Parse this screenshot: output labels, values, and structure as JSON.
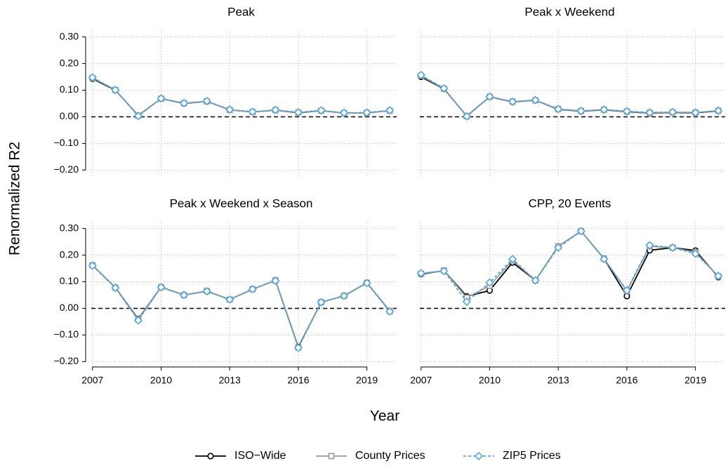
{
  "chart_data": [
    {
      "type": "line",
      "title": "Peak",
      "x": [
        2007,
        2008,
        2009,
        2010,
        2011,
        2012,
        2013,
        2014,
        2015,
        2016,
        2017,
        2018,
        2019,
        2020
      ],
      "series": [
        {
          "name": "ISO−Wide",
          "color": "#000000",
          "marker": "circle",
          "linestyle": "solid",
          "values": [
            0.143,
            0.1,
            0.005,
            0.068,
            0.05,
            0.058,
            0.026,
            0.018,
            0.025,
            0.015,
            0.023,
            0.014,
            0.015,
            0.023
          ]
        },
        {
          "name": "County Prices",
          "color": "#999999",
          "marker": "square",
          "linestyle": "solid",
          "values": [
            0.146,
            0.101,
            0.004,
            0.068,
            0.051,
            0.058,
            0.026,
            0.018,
            0.025,
            0.016,
            0.023,
            0.014,
            0.015,
            0.023
          ]
        },
        {
          "name": "ZIP5 Prices",
          "color": "#56a8dc",
          "marker": "diamond",
          "linestyle": "dashed",
          "values": [
            0.148,
            0.101,
            0.003,
            0.069,
            0.051,
            0.059,
            0.027,
            0.019,
            0.026,
            0.017,
            0.024,
            0.015,
            0.016,
            0.024
          ]
        }
      ],
      "xlim": [
        2006.7,
        2020.3
      ],
      "xticks": [
        2007,
        2010,
        2013,
        2016,
        2019
      ],
      "ylim": [
        -0.22,
        0.32
      ],
      "yticks": [
        {
          "value": -0.2,
          "label": "−0.20"
        },
        {
          "value": -0.1,
          "label": "−0.10"
        },
        {
          "value": 0,
          "label": "0.00"
        },
        {
          "value": 0.1,
          "label": "0.10"
        },
        {
          "value": 0.2,
          "label": "0.20"
        },
        {
          "value": 0.3,
          "label": "0.30"
        }
      ],
      "hline": 0,
      "grid": true
    },
    {
      "type": "line",
      "title": "Peak x Weekend",
      "x": [
        2007,
        2008,
        2009,
        2010,
        2011,
        2012,
        2013,
        2014,
        2015,
        2016,
        2017,
        2018,
        2019,
        2020
      ],
      "series": [
        {
          "name": "ISO−Wide",
          "color": "#000000",
          "marker": "circle",
          "linestyle": "solid",
          "values": [
            0.15,
            0.105,
            0.003,
            0.075,
            0.056,
            0.062,
            0.028,
            0.021,
            0.026,
            0.019,
            0.014,
            0.016,
            0.015,
            0.022
          ]
        },
        {
          "name": "County Prices",
          "color": "#999999",
          "marker": "square",
          "linestyle": "solid",
          "values": [
            0.154,
            0.106,
            0.002,
            0.075,
            0.057,
            0.062,
            0.029,
            0.022,
            0.027,
            0.02,
            0.015,
            0.017,
            0.016,
            0.023
          ]
        },
        {
          "name": "ZIP5 Prices",
          "color": "#56a8dc",
          "marker": "diamond",
          "linestyle": "dashed",
          "values": [
            0.157,
            0.107,
            0.002,
            0.076,
            0.057,
            0.063,
            0.029,
            0.022,
            0.027,
            0.021,
            0.016,
            0.018,
            0.016,
            0.023
          ]
        }
      ],
      "xlim": [
        2006.7,
        2020.3
      ],
      "xticks": [
        2007,
        2010,
        2013,
        2016,
        2019
      ],
      "ylim": [
        -0.22,
        0.32
      ],
      "yticks": [
        {
          "value": -0.2,
          "label": "−0.20"
        },
        {
          "value": -0.1,
          "label": "−0.10"
        },
        {
          "value": 0,
          "label": "0.00"
        },
        {
          "value": 0.1,
          "label": "0.10"
        },
        {
          "value": 0.2,
          "label": "0.20"
        },
        {
          "value": 0.3,
          "label": "0.30"
        }
      ],
      "hline": 0,
      "grid": true
    },
    {
      "type": "line",
      "title": "Peak x Weekend x Season",
      "x": [
        2007,
        2008,
        2009,
        2010,
        2011,
        2012,
        2013,
        2014,
        2015,
        2016,
        2017,
        2018,
        2019,
        2020
      ],
      "series": [
        {
          "name": "ISO−Wide",
          "color": "#000000",
          "marker": "circle",
          "linestyle": "solid",
          "values": [
            0.162,
            0.078,
            -0.04,
            0.08,
            0.05,
            0.065,
            0.033,
            0.072,
            0.105,
            -0.145,
            0.023,
            0.047,
            0.096,
            -0.01
          ]
        },
        {
          "name": "County Prices",
          "color": "#999999",
          "marker": "square",
          "linestyle": "solid",
          "values": [
            0.162,
            0.078,
            -0.042,
            0.08,
            0.05,
            0.065,
            0.033,
            0.072,
            0.105,
            -0.147,
            0.023,
            0.047,
            0.096,
            -0.011
          ]
        },
        {
          "name": "ZIP5 Prices",
          "color": "#56a8dc",
          "marker": "diamond",
          "linestyle": "dashed",
          "values": [
            0.16,
            0.077,
            -0.045,
            0.079,
            0.05,
            0.064,
            0.033,
            0.072,
            0.104,
            -0.148,
            0.023,
            0.047,
            0.095,
            -0.012
          ]
        }
      ],
      "xlim": [
        2006.7,
        2020.3
      ],
      "xticks": [
        2007,
        2010,
        2013,
        2016,
        2019
      ],
      "ylim": [
        -0.22,
        0.32
      ],
      "yticks": [
        {
          "value": -0.2,
          "label": "−0.20"
        },
        {
          "value": -0.1,
          "label": "−0.10"
        },
        {
          "value": 0,
          "label": "0.00"
        },
        {
          "value": 0.1,
          "label": "0.10"
        },
        {
          "value": 0.2,
          "label": "0.20"
        },
        {
          "value": 0.3,
          "label": "0.30"
        }
      ],
      "hline": 0,
      "grid": true
    },
    {
      "type": "line",
      "title": "CPP, 20 Events",
      "x": [
        2007,
        2008,
        2009,
        2010,
        2011,
        2012,
        2013,
        2014,
        2015,
        2016,
        2017,
        2018,
        2019,
        2020
      ],
      "series": [
        {
          "name": "ISO−Wide",
          "color": "#000000",
          "marker": "circle",
          "linestyle": "solid",
          "values": [
            0.128,
            0.142,
            0.045,
            0.067,
            0.172,
            0.105,
            0.233,
            0.29,
            0.187,
            0.046,
            0.218,
            0.228,
            0.217,
            0.117
          ]
        },
        {
          "name": "County Prices",
          "color": "#999999",
          "marker": "square",
          "linestyle": "solid",
          "values": [
            0.13,
            0.142,
            0.04,
            0.085,
            0.18,
            0.105,
            0.233,
            0.29,
            0.187,
            0.065,
            0.233,
            0.228,
            0.21,
            0.12
          ]
        },
        {
          "name": "ZIP5 Prices",
          "color": "#56a8dc",
          "marker": "diamond",
          "linestyle": "dashed",
          "values": [
            0.132,
            0.14,
            0.025,
            0.097,
            0.185,
            0.105,
            0.228,
            0.29,
            0.185,
            0.068,
            0.237,
            0.228,
            0.205,
            0.122
          ]
        }
      ],
      "xlim": [
        2006.7,
        2020.3
      ],
      "xticks": [
        2007,
        2010,
        2013,
        2016,
        2019
      ],
      "ylim": [
        -0.22,
        0.32
      ],
      "yticks": [
        {
          "value": -0.2,
          "label": "−0.20"
        },
        {
          "value": -0.1,
          "label": "−0.10"
        },
        {
          "value": 0,
          "label": "0.00"
        },
        {
          "value": 0.1,
          "label": "0.10"
        },
        {
          "value": 0.2,
          "label": "0.20"
        },
        {
          "value": 0.3,
          "label": "0.30"
        }
      ],
      "hline": 0,
      "grid": true
    }
  ],
  "xlabel": "Year",
  "ylabel": "Renormalized R2"
}
